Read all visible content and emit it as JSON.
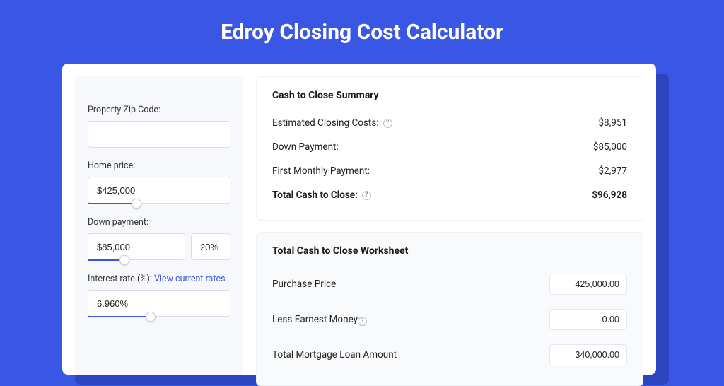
{
  "page": {
    "title": "Edroy Closing Cost Calculator",
    "background_color": "#3a56e4",
    "shadow_color": "#2c44c0",
    "card_bg": "#ffffff",
    "left_bg": "#f6f8fc"
  },
  "form": {
    "zip": {
      "label": "Property Zip Code:",
      "value": ""
    },
    "home_price": {
      "label": "Home price:",
      "value": "$425,000",
      "slider_pct": 34
    },
    "down_payment": {
      "label": "Down payment:",
      "value": "$85,000",
      "pct": "20%",
      "slider_pct": 38
    },
    "interest": {
      "label": "Interest rate (%): ",
      "link": "View current rates",
      "value": "6.960%",
      "slider_pct": 44
    }
  },
  "summary": {
    "title": "Cash to Close Summary",
    "rows": [
      {
        "label": "Estimated Closing Costs:",
        "help": true,
        "value": "$8,951"
      },
      {
        "label": "Down Payment:",
        "help": false,
        "value": "$85,000"
      },
      {
        "label": "First Monthly Payment:",
        "help": false,
        "value": "$2,977"
      }
    ],
    "total": {
      "label": "Total Cash to Close:",
      "help": true,
      "value": "$96,928"
    }
  },
  "worksheet": {
    "title": "Total Cash to Close Worksheet",
    "rows": [
      {
        "label": "Purchase Price",
        "help": false,
        "value": "425,000.00"
      },
      {
        "label": "Less Earnest Money",
        "help": true,
        "value": "0.00"
      },
      {
        "label": "Total Mortgage Loan Amount",
        "help": false,
        "value": "340,000.00"
      }
    ]
  }
}
